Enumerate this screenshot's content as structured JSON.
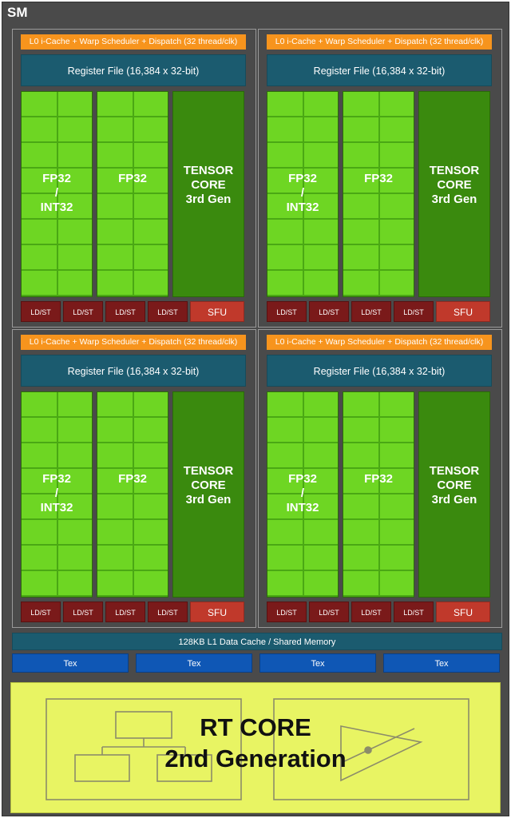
{
  "sm_label": "SM",
  "partitions": [
    {
      "warp_scheduler": "L0 i-Cache + Warp Scheduler + Dispatch (32 thread/clk)",
      "register_file": "Register File (16,384 x 32-bit)",
      "fp32_int32": {
        "line1": "FP32",
        "line2": "/",
        "line3": "INT32"
      },
      "fp32": "FP32",
      "tensor": {
        "line1": "TENSOR",
        "line2": "CORE",
        "line3": "3rd Gen"
      },
      "ldst": [
        "LD/ST",
        "LD/ST",
        "LD/ST",
        "LD/ST"
      ],
      "sfu": "SFU"
    },
    {
      "warp_scheduler": "L0 i-Cache + Warp Scheduler + Dispatch (32 thread/clk)",
      "register_file": "Register File (16,384 x 32-bit)",
      "fp32_int32": {
        "line1": "FP32",
        "line2": "/",
        "line3": "INT32"
      },
      "fp32": "FP32",
      "tensor": {
        "line1": "TENSOR",
        "line2": "CORE",
        "line3": "3rd Gen"
      },
      "ldst": [
        "LD/ST",
        "LD/ST",
        "LD/ST",
        "LD/ST"
      ],
      "sfu": "SFU"
    },
    {
      "warp_scheduler": "L0 i-Cache + Warp Scheduler + Dispatch (32 thread/clk)",
      "register_file": "Register File (16,384 x 32-bit)",
      "fp32_int32": {
        "line1": "FP32",
        "line2": "/",
        "line3": "INT32"
      },
      "fp32": "FP32",
      "tensor": {
        "line1": "TENSOR",
        "line2": "CORE",
        "line3": "3rd Gen"
      },
      "ldst": [
        "LD/ST",
        "LD/ST",
        "LD/ST",
        "LD/ST"
      ],
      "sfu": "SFU"
    },
    {
      "warp_scheduler": "L0 i-Cache + Warp Scheduler + Dispatch (32 thread/clk)",
      "register_file": "Register File (16,384 x 32-bit)",
      "fp32_int32": {
        "line1": "FP32",
        "line2": "/",
        "line3": "INT32"
      },
      "fp32": "FP32",
      "tensor": {
        "line1": "TENSOR",
        "line2": "CORE",
        "line3": "3rd Gen"
      },
      "ldst": [
        "LD/ST",
        "LD/ST",
        "LD/ST",
        "LD/ST"
      ],
      "sfu": "SFU"
    }
  ],
  "l1_cache": "128KB L1 Data Cache / Shared Memory",
  "tex_units": [
    "Tex",
    "Tex",
    "Tex",
    "Tex"
  ],
  "rt_core": {
    "line1": "RT CORE",
    "line2": "2nd Generation"
  },
  "colors": {
    "sm_background": "#4a4a4a",
    "warp_scheduler": "#f7941d",
    "register_file": "#1b5b6f",
    "fp_cores": "#6ed623",
    "tensor_core": "#3a8a0e",
    "ldst": "#7a1a1a",
    "sfu": "#c0392b",
    "tex": "#0f57b5",
    "rt_core": "#e8f463"
  }
}
